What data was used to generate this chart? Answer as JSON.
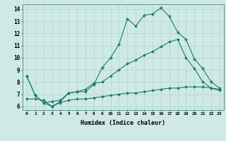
{
  "xlabel": "Humidex (Indice chaleur)",
  "background_color": "#cfe9e5",
  "grid_color": "#b8d8d4",
  "line_color": "#1a7a6e",
  "xlim": [
    -0.5,
    23.5
  ],
  "ylim": [
    5.7,
    14.4
  ],
  "yticks": [
    6,
    7,
    8,
    9,
    10,
    11,
    12,
    13,
    14
  ],
  "xticks": [
    0,
    1,
    2,
    3,
    4,
    5,
    6,
    7,
    8,
    9,
    10,
    11,
    12,
    13,
    14,
    15,
    16,
    17,
    18,
    19,
    20,
    21,
    22,
    23
  ],
  "series1_x": [
    0,
    1,
    2,
    3,
    4,
    5,
    6,
    7,
    8,
    9,
    10,
    11,
    12,
    13,
    14,
    15,
    16,
    17,
    18,
    19,
    20,
    21,
    22,
    23
  ],
  "series1_y": [
    8.5,
    6.9,
    6.3,
    6.0,
    6.4,
    7.1,
    7.2,
    7.2,
    7.8,
    9.2,
    10.0,
    11.1,
    13.2,
    12.6,
    13.5,
    13.6,
    14.1,
    13.4,
    12.1,
    11.5,
    9.9,
    9.1,
    8.0,
    7.5
  ],
  "series2_x": [
    0,
    1,
    2,
    3,
    4,
    5,
    6,
    7,
    8,
    9,
    10,
    11,
    12,
    13,
    14,
    15,
    16,
    17,
    18,
    19,
    20,
    21,
    22,
    23
  ],
  "series2_y": [
    8.5,
    6.9,
    6.3,
    6.4,
    6.5,
    7.1,
    7.2,
    7.4,
    7.9,
    8.0,
    8.5,
    9.0,
    9.5,
    9.8,
    10.2,
    10.5,
    10.9,
    11.3,
    11.5,
    10.0,
    9.1,
    8.0,
    7.5,
    7.3
  ],
  "series3_x": [
    0,
    1,
    2,
    3,
    4,
    5,
    6,
    7,
    8,
    9,
    10,
    11,
    12,
    13,
    14,
    15,
    16,
    17,
    18,
    19,
    20,
    21,
    22,
    23
  ],
  "series3_y": [
    6.6,
    6.6,
    6.5,
    6.0,
    6.3,
    6.5,
    6.6,
    6.6,
    6.7,
    6.8,
    6.9,
    7.0,
    7.1,
    7.1,
    7.2,
    7.3,
    7.4,
    7.5,
    7.5,
    7.6,
    7.6,
    7.6,
    7.5,
    7.4
  ]
}
